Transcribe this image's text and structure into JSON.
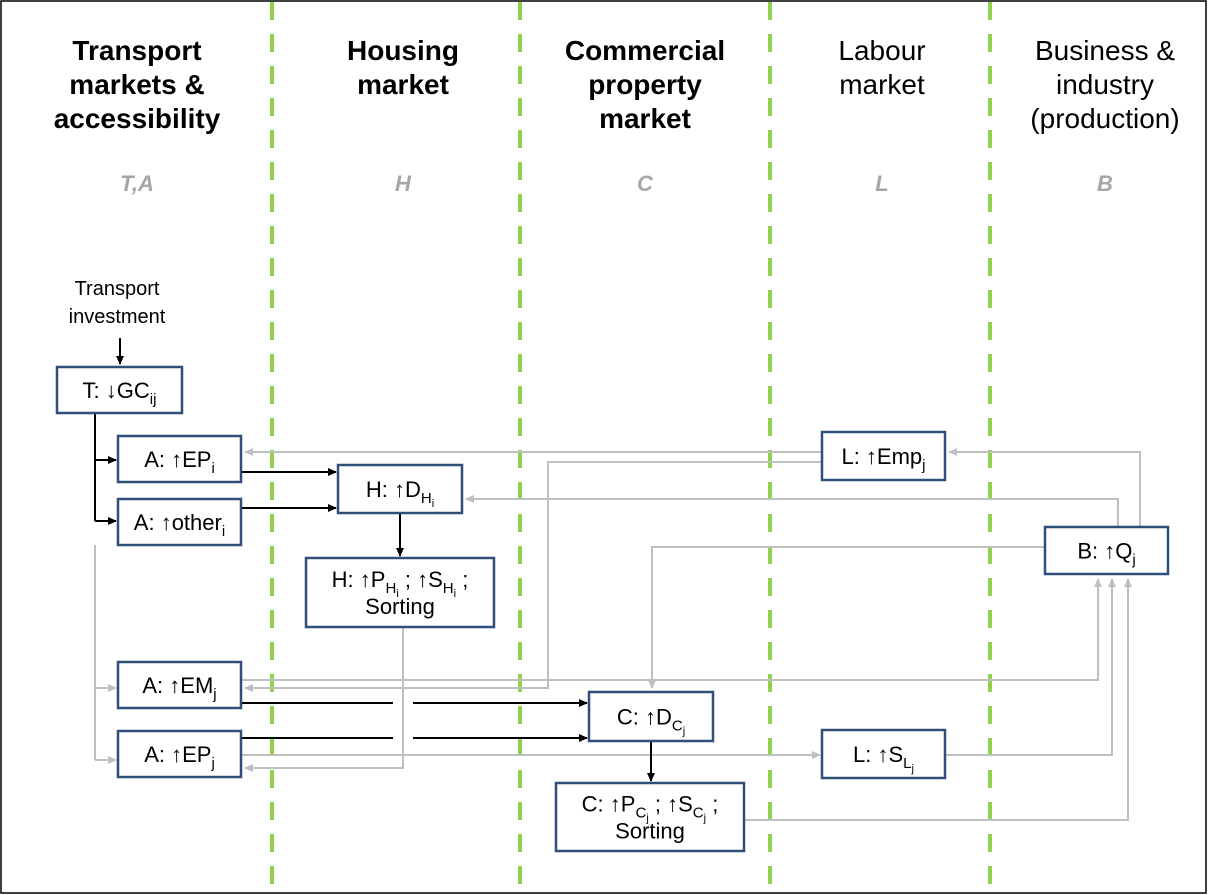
{
  "columns": [
    {
      "title": [
        "Transport",
        "markets &",
        "accessibility"
      ],
      "symbol": "T,A"
    },
    {
      "title": [
        "Housing",
        "market"
      ],
      "symbol": "H"
    },
    {
      "title": [
        "Commercial",
        "property",
        "market"
      ],
      "symbol": "C"
    },
    {
      "title": [
        "Labour",
        "market"
      ],
      "symbol": "L"
    },
    {
      "title": [
        "Business &",
        "industry",
        "(production)"
      ],
      "symbol": "B"
    }
  ],
  "source": [
    "Transport",
    "investment"
  ],
  "nodes": [
    {
      "label": [
        [
          {
            "t": "T: ↓GC"
          },
          {
            "sub": "ij"
          }
        ]
      ]
    },
    {
      "label": [
        [
          {
            "t": "A: ↑EP"
          },
          {
            "sub": "i"
          }
        ]
      ]
    },
    {
      "label": [
        [
          {
            "t": "A: ↑other"
          },
          {
            "sub": "i"
          }
        ]
      ]
    },
    {
      "label": [
        [
          {
            "t": "H: ↑D"
          },
          {
            "sub": "H"
          },
          {
            "subsub": "i"
          }
        ]
      ]
    },
    {
      "label": [
        [
          {
            "t": "H: ↑P"
          },
          {
            "sub": "H"
          },
          {
            "subsub": "i"
          },
          {
            "t": " ; ↑S"
          },
          {
            "sub": "H"
          },
          {
            "subsub": "i"
          },
          {
            "t": " ;"
          }
        ],
        [
          {
            "t": "Sorting"
          }
        ]
      ]
    },
    {
      "label": [
        [
          {
            "t": "L: ↑Emp"
          },
          {
            "sub": "j"
          }
        ]
      ]
    },
    {
      "label": [
        [
          {
            "t": "B: ↑Q"
          },
          {
            "sub": "j"
          }
        ]
      ]
    },
    {
      "label": [
        [
          {
            "t": "A: ↑EM"
          },
          {
            "sub": "j"
          }
        ]
      ]
    },
    {
      "label": [
        [
          {
            "t": "C: ↑D"
          },
          {
            "sub": "C"
          },
          {
            "subsub": "j"
          }
        ]
      ]
    },
    {
      "label": [
        [
          {
            "t": "A: ↑EP"
          },
          {
            "sub": "j"
          }
        ]
      ]
    },
    {
      "label": [
        [
          {
            "t": "L: ↑S"
          },
          {
            "sub": "L"
          },
          {
            "subsub": "j"
          }
        ]
      ]
    },
    {
      "label": [
        [
          {
            "t": "C: ↑P"
          },
          {
            "sub": "C"
          },
          {
            "subsub": "j"
          },
          {
            "t": " ; ↑S"
          },
          {
            "sub": "C"
          },
          {
            "subsub": "j"
          },
          {
            "t": " ;"
          }
        ],
        [
          {
            "t": "Sorting"
          }
        ]
      ]
    }
  ]
}
